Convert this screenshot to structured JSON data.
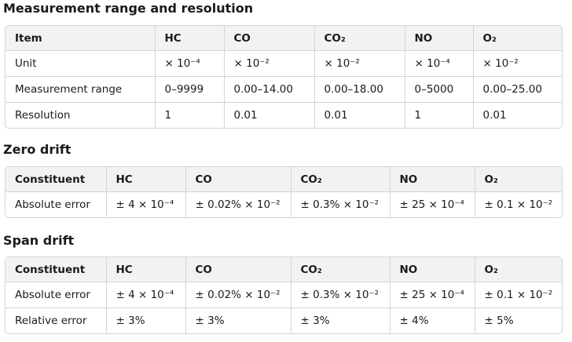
{
  "sections": [
    {
      "title": "Measurement range and resolution",
      "table": {
        "header": [
          "Item",
          "HC",
          "CO",
          "CO₂",
          "NO",
          "O₂"
        ],
        "rows": [
          [
            "Unit",
            "× 10⁻⁴",
            "× 10⁻²",
            "× 10⁻²",
            "× 10⁻⁴",
            "× 10⁻²"
          ],
          [
            "Measurement range",
            "0–9999",
            "0.00–14.00",
            "0.00–18.00",
            "0–5000",
            "0.00–25.00"
          ],
          [
            "Resolution",
            "1",
            "0.01",
            "0.01",
            "1",
            "0.01"
          ]
        ]
      }
    },
    {
      "title": "Zero drift",
      "table": {
        "header": [
          "Constituent",
          "HC",
          "CO",
          "CO₂",
          "NO",
          "O₂"
        ],
        "rows": [
          [
            "Absolute error",
            "± 4 × 10⁻⁴",
            "± 0.02% × 10⁻²",
            "± 0.3% × 10⁻²",
            "± 25 × 10⁻⁴",
            "± 0.1 × 10⁻²"
          ]
        ]
      }
    },
    {
      "title": "Span drift",
      "table": {
        "header": [
          "Constituent",
          "HC",
          "CO",
          "CO₂",
          "NO",
          "O₂"
        ],
        "rows": [
          [
            "Absolute error",
            "± 4 × 10⁻⁴",
            "± 0.02% × 10⁻²",
            "± 0.3% × 10⁻²",
            "± 25 × 10⁻⁴",
            "± 0.1 × 10⁻²"
          ],
          [
            "Relative error",
            "± 3%",
            "± 3%",
            "± 3%",
            "± 4%",
            "± 5%"
          ]
        ]
      }
    }
  ]
}
